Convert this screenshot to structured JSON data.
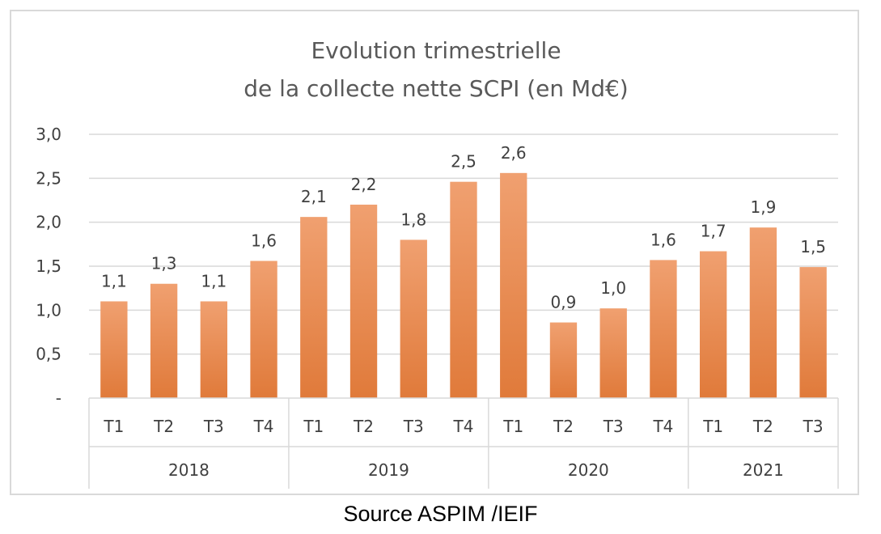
{
  "chart_data": {
    "type": "bar",
    "title": [
      "Evolution trimestrielle",
      "de la collecte nette SCPI (en Md€)"
    ],
    "categories": [
      "T1",
      "T2",
      "T3",
      "T4",
      "T1",
      "T2",
      "T3",
      "T4",
      "T1",
      "T2",
      "T3",
      "T4",
      "T1",
      "T2",
      "T3"
    ],
    "groups": [
      {
        "label": "2018",
        "count": 4
      },
      {
        "label": "2019",
        "count": 4
      },
      {
        "label": "2020",
        "count": 4
      },
      {
        "label": "2021",
        "count": 3
      }
    ],
    "values": [
      1.1,
      1.3,
      1.1,
      1.56,
      2.06,
      2.2,
      1.8,
      2.46,
      2.56,
      0.86,
      1.02,
      1.57,
      1.67,
      1.94,
      1.49
    ],
    "data_labels": [
      "1,1",
      "1,3",
      "1,1",
      "1,6",
      "2,1",
      "2,2",
      "1,8",
      "2,5",
      "2,6",
      "0,9",
      "1,0",
      "1,6",
      "1,7",
      "1,9",
      "1,5"
    ],
    "ylim": [
      0,
      3.0
    ],
    "yticks": [
      0,
      0.5,
      1.0,
      1.5,
      2.0,
      2.5,
      3.0
    ],
    "ytick_labels": [
      "-",
      "0,5",
      "1,0",
      "1,5",
      "2,0",
      "2,5",
      "3,0"
    ],
    "xlabel": "",
    "ylabel": "",
    "grid": true,
    "bar_color": "#e07a3a",
    "bar_color_light": "#f0a070",
    "grid_color": "#d9d9d9"
  },
  "source": "Source ASPIM /IEIF"
}
